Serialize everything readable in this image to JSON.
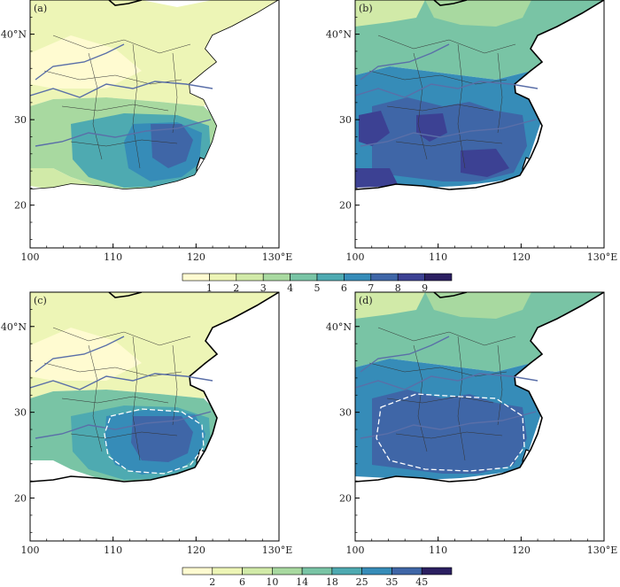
{
  "panels": [
    {
      "id": "a",
      "label": "(a)",
      "colorbar": "top",
      "threshold_contour": false
    },
    {
      "id": "b",
      "label": "(b)",
      "colorbar": "top",
      "threshold_contour": false
    },
    {
      "id": "c",
      "label": "(c)",
      "colorbar": "bottom",
      "threshold_contour": true
    },
    {
      "id": "d",
      "label": "(d)",
      "colorbar": "bottom",
      "threshold_contour": true
    }
  ],
  "axes": {
    "x_ticks": [
      "100",
      "110",
      "120",
      "130°E"
    ],
    "y_ticks": [
      "20",
      "30",
      "40°N"
    ],
    "lon_range": [
      100,
      130
    ],
    "lat_range": [
      15,
      44
    ]
  },
  "colorbar_top": {
    "labels": [
      "1",
      "2",
      "3",
      "4",
      "5",
      "6",
      "7",
      "8",
      "9"
    ],
    "colors": [
      "#fffbd1",
      "#edf5b6",
      "#d1eaa8",
      "#a8d9a0",
      "#79c4a5",
      "#4eaab1",
      "#368cb8",
      "#3f66a7",
      "#3c4193",
      "#2b1f61"
    ]
  },
  "colorbar_bottom": {
    "labels": [
      "2",
      "6",
      "10",
      "14",
      "18",
      "25",
      "35",
      "45"
    ],
    "colors": [
      "#fffbd1",
      "#edf5b6",
      "#d1eaa8",
      "#a8d9a0",
      "#79c4a5",
      "#4eaab1",
      "#368cb8",
      "#3f66a7",
      "#2b1f61"
    ]
  },
  "map_colors": {
    "land_outline": "#000000",
    "rivers": "#5a6fa8",
    "provinces": "#333333",
    "threshold_contour": "#ffffff"
  }
}
